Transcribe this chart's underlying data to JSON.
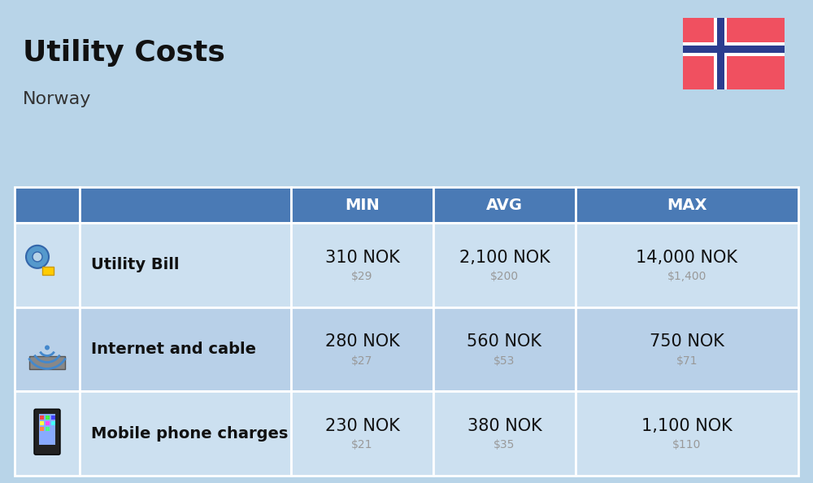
{
  "title": "Utility Costs",
  "subtitle": "Norway",
  "background_color": "#b8d4e8",
  "header_bg_color": "#4a7ab5",
  "header_text_color": "#ffffff",
  "row_bg_color_odd": "#cce0f0",
  "row_bg_color_even": "#b8d0e8",
  "table_border_color": "#ffffff",
  "rows": [
    {
      "label": "Utility Bill",
      "min_nok": "310 NOK",
      "min_usd": "$29",
      "avg_nok": "2,100 NOK",
      "avg_usd": "$200",
      "max_nok": "14,000 NOK",
      "max_usd": "$1,400"
    },
    {
      "label": "Internet and cable",
      "min_nok": "280 NOK",
      "min_usd": "$27",
      "avg_nok": "560 NOK",
      "avg_usd": "$53",
      "max_nok": "750 NOK",
      "max_usd": "$71"
    },
    {
      "label": "Mobile phone charges",
      "min_nok": "230 NOK",
      "min_usd": "$21",
      "avg_nok": "380 NOK",
      "avg_usd": "$35",
      "max_nok": "1,100 NOK",
      "max_usd": "$110"
    }
  ],
  "nok_fontsize": 15,
  "usd_fontsize": 10,
  "usd_color": "#999999",
  "label_fontsize": 14,
  "flag_red": "#f05060",
  "flag_blue": "#2b3d8f",
  "flag_white": "#ffffff",
  "title_fontsize": 26,
  "subtitle_fontsize": 16,
  "header_fontsize": 14
}
